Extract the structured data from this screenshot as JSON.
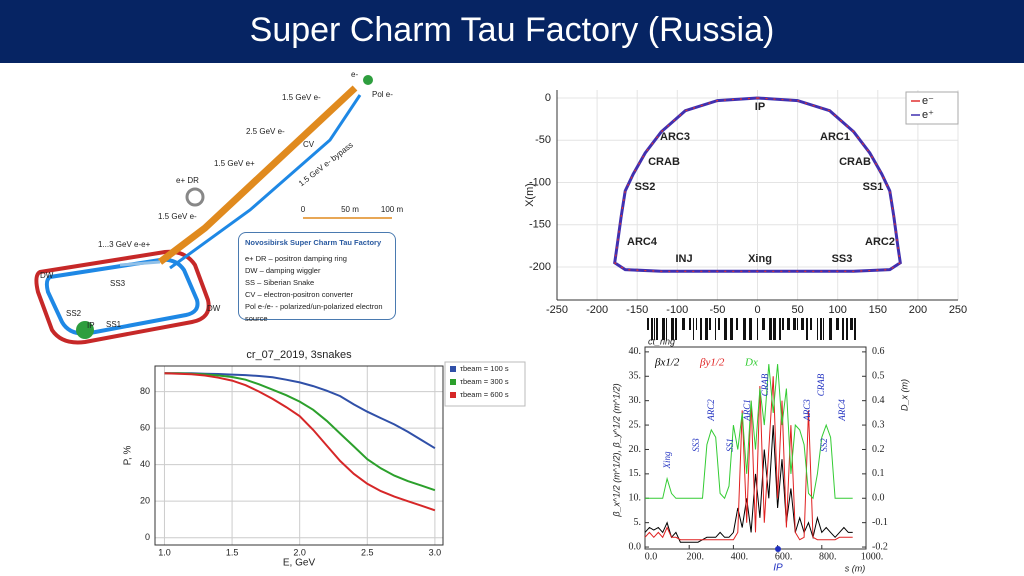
{
  "title": "Super Charm Tau Factory (Russia)",
  "diagram": {
    "labels": [
      "e-",
      "Pol e-",
      "1.5 GeV e-",
      "2.5 GeV e-",
      "CV",
      "1.5 GeV e+",
      "e+ DR",
      "1.5 GeV e- bypass",
      "1.5 GeV e-",
      "1...3 GeV e-e+",
      "DW",
      "SS3",
      "SS2",
      "IP",
      "SS1",
      "DW"
    ],
    "scale_labels": [
      "0",
      "50 m",
      "100 m"
    ],
    "legend_title": "Novosibirsk Super Charm Tau Factory",
    "legend_lines": [
      "e+ DR – positron damping ring",
      "DW – damping wiggler",
      "SS – Siberian Snake",
      "CV – electron-positron converter",
      "Pol e-/e- - polarized/un-polarized electron source"
    ]
  },
  "chart_data": [
    {
      "type": "line",
      "title": "cr_07_2019, 3snakes",
      "x_label": "E, GeV",
      "y_label": "P, %",
      "x": [
        1.0,
        1.1,
        1.2,
        1.3,
        1.4,
        1.5,
        1.6,
        1.7,
        1.8,
        1.9,
        2.0,
        2.1,
        2.2,
        2.3,
        2.4,
        2.5,
        2.6,
        2.7,
        2.8,
        2.9,
        3.0
      ],
      "series": [
        {
          "name": "τbeam = 100 s",
          "color": "#3050a8",
          "values": [
            90,
            90,
            90,
            89.8,
            89.6,
            89.3,
            89,
            88.5,
            87.8,
            86.5,
            85,
            83,
            80.5,
            77.5,
            73,
            69,
            65.5,
            62,
            58,
            53.5,
            49
          ]
        },
        {
          "name": "τbeam = 300 s",
          "color": "#2ca02c",
          "values": [
            90,
            90,
            89.8,
            89.4,
            88.8,
            88,
            86.5,
            84,
            81,
            78,
            74.5,
            70,
            64,
            57,
            50,
            43,
            38,
            34,
            31,
            28.5,
            26
          ]
        },
        {
          "name": "τbeam = 600 s",
          "color": "#d62728",
          "values": [
            90,
            89.8,
            89.5,
            88.8,
            87.6,
            86,
            83.5,
            80,
            76,
            71.5,
            66.5,
            59,
            50.5,
            42,
            35,
            29.5,
            25.5,
            22.5,
            20,
            17.5,
            15
          ]
        }
      ],
      "xlim": [
        0.93,
        3.06
      ],
      "ylim": [
        -4,
        94
      ],
      "xticks": [
        {
          "value": 1.0,
          "label": "1.0"
        },
        1.5,
        {
          "value": 2.0,
          "label": "2.0"
        },
        2.5,
        {
          "value": 3.0,
          "label": "3.0"
        }
      ],
      "yticks": [
        0,
        20,
        40,
        60,
        80
      ],
      "grid": true
    },
    {
      "type": "line",
      "y_label": "X(m)",
      "series": [
        {
          "name": "e⁻",
          "color": "#e03030",
          "x": [
            0,
            50,
            90,
            120,
            140,
            155,
            165,
            170,
            175,
            178,
            165,
            120,
            50,
            0,
            -50,
            -120,
            -165,
            -178,
            -175,
            -170,
            -165,
            -155,
            -140,
            -120,
            -90,
            -50,
            0
          ],
          "values": [
            0,
            -3,
            -15,
            -40,
            -65,
            -90,
            -110,
            -140,
            -175,
            -195,
            -203,
            -205,
            -205,
            -205,
            -205,
            -205,
            -203,
            -195,
            -175,
            -140,
            -110,
            -90,
            -65,
            -40,
            -15,
            -3,
            0
          ]
        },
        {
          "name": "e⁺",
          "color": "#4030b0",
          "x": [
            0,
            50,
            90,
            120,
            140,
            155,
            165,
            170,
            175,
            178,
            165,
            120,
            50,
            0,
            -50,
            -120,
            -165,
            -178,
            -175,
            -170,
            -165,
            -155,
            -140,
            -120,
            -90,
            -50,
            0
          ],
          "values": [
            0,
            -3,
            -15,
            -40,
            -65,
            -90,
            -110,
            -140,
            -175,
            -195,
            -203,
            -205,
            -205,
            -205,
            -205,
            -205,
            -203,
            -195,
            -175,
            -140,
            -110,
            -90,
            -65,
            -40,
            -15,
            -3,
            0
          ]
        }
      ],
      "annotations": [
        "IP",
        "ARC3",
        "ARC1",
        "CRAB",
        "CRAB",
        "SS2",
        "SS1",
        "ARC4",
        "ARC2",
        "INJ",
        "Xing",
        "SS3"
      ],
      "xlim": [
        -250,
        250
      ],
      "ylim": [
        -239,
        9.5
      ],
      "xticks": [
        -250,
        -200,
        -150,
        -100,
        -50,
        0,
        50,
        100,
        150,
        200,
        250
      ],
      "yticks": [
        0,
        -50,
        -100,
        -150,
        -200
      ],
      "grid": true
    },
    {
      "type": "line",
      "title": "ct_ring",
      "x_label": "s (m)",
      "y_label": "β_x^1/2 (m^1/2), β_y^1/2 (m^1/2)",
      "y2_label": "D_x (m)",
      "x": [
        0,
        20,
        40,
        60,
        80,
        100,
        120,
        140,
        160,
        180,
        200,
        220,
        240,
        260,
        280,
        300,
        320,
        340,
        360,
        380,
        400,
        420,
        440,
        460,
        480,
        500,
        520,
        540,
        560,
        580,
        600,
        620,
        640,
        660,
        680,
        700,
        720,
        740,
        760,
        780,
        800,
        820,
        840,
        860,
        880,
        900,
        920,
        940
      ],
      "series": [
        {
          "name": "βx1/2",
          "color": "#000000",
          "values": [
            3,
            4,
            3.5,
            4,
            3,
            5,
            2,
            3,
            1,
            1,
            1,
            1,
            1,
            1.5,
            2,
            2,
            2,
            3,
            2,
            2,
            3,
            8,
            4,
            10,
            3,
            15,
            6,
            20,
            10,
            25,
            8,
            18,
            5,
            12,
            3,
            6,
            3,
            5,
            2,
            6,
            3,
            4,
            3,
            2,
            3,
            4,
            3,
            3
          ]
        },
        {
          "name": "βy1/2",
          "color": "#e02020",
          "values": [
            2,
            3,
            2,
            3,
            2,
            4,
            2,
            2,
            1.5,
            1.5,
            1.5,
            1.5,
            1.5,
            1.5,
            1.5,
            1.5,
            1.5,
            1.5,
            1.5,
            1.5,
            1.5,
            3,
            28,
            5,
            30,
            3,
            33,
            5,
            20,
            35,
            10,
            30,
            4,
            25,
            3,
            1.5,
            2,
            28,
            2,
            1.5,
            1.5,
            1.5,
            1.5,
            1.5,
            2,
            2,
            2,
            2
          ]
        },
        {
          "name": "Dx",
          "color": "#33cc33",
          "axis": "y2",
          "values": [
            0,
            0,
            0,
            0,
            0,
            0.08,
            0.02,
            0,
            0,
            0,
            0,
            0,
            0,
            0,
            0.22,
            0.28,
            0.25,
            0.02,
            0,
            0.05,
            0.3,
            0.2,
            0.35,
            0.1,
            0.4,
            0.2,
            0.45,
            0.3,
            0.55,
            0.35,
            0.55,
            0.3,
            0.45,
            0.1,
            0.3,
            0.28,
            0.22,
            0.02,
            0,
            0.1,
            0.25,
            0.3,
            0.25,
            0,
            0,
            0,
            0,
            0
          ]
        }
      ],
      "annotations": [
        "Xing",
        "SS3",
        "ARC2",
        "SS1",
        "ARC1",
        "CRAB",
        "ARC3",
        "CRAB",
        "SS2",
        "ARC4"
      ],
      "marker_label": "IP",
      "xlim": [
        0,
        1000
      ],
      "ylim": [
        -0.4,
        41
      ],
      "y2lim": [
        -0.208,
        0.62
      ],
      "xticks": [
        {
          "value": 0,
          "label": "0.0"
        },
        {
          "value": 200,
          "label": "200."
        },
        {
          "value": 400,
          "label": "400."
        },
        {
          "value": 600,
          "label": "600."
        },
        {
          "value": 800,
          "label": "800."
        },
        {
          "value": 1000,
          "label": "1000."
        }
      ],
      "yticks": [
        {
          "value": 0,
          "label": "0.0"
        },
        {
          "value": 5,
          "label": "5."
        },
        {
          "value": 10,
          "label": "10."
        },
        {
          "value": 15,
          "label": "15."
        },
        {
          "value": 20,
          "label": "20."
        },
        {
          "value": 25,
          "label": "25."
        },
        {
          "value": 30,
          "label": "30."
        },
        {
          "value": 35,
          "label": "35."
        },
        {
          "value": 40,
          "label": "40."
        }
      ],
      "y2ticks": [
        -0.2,
        -0.1,
        {
          "value": 0,
          "label": "0.0"
        },
        0.1,
        0.2,
        0.3,
        0.4,
        0.5,
        0.6
      ]
    }
  ]
}
